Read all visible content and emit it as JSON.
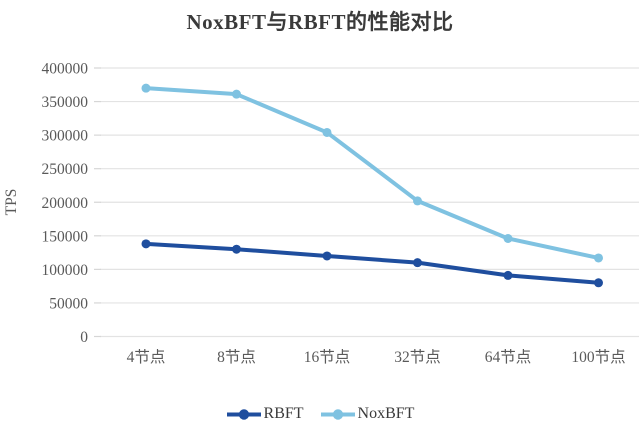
{
  "colors": {
    "background": "#FFFFFF",
    "gridline": "#E3E3E3",
    "tick": "#D6D6D6",
    "axis_text": "#595959",
    "title_text": "#3A3A3A",
    "rbft_blue": "#1F4E9E",
    "noxbft_blue": "#7FC2E1"
  },
  "chart_data": {
    "type": "line",
    "title": "NoxBFT与RBFT的性能对比",
    "xlabel": "",
    "ylabel": "TPS",
    "categories": [
      "4节点",
      "8节点",
      "16节点",
      "32节点",
      "64节点",
      "100节点"
    ],
    "series": [
      {
        "name": "RBFT",
        "color": "#1F4E9E",
        "values": [
          138000,
          130000,
          120000,
          110000,
          91000,
          80000
        ]
      },
      {
        "name": "NoxBFT",
        "color": "#7FC2E1",
        "values": [
          370000,
          361000,
          304000,
          202000,
          146000,
          117000
        ]
      }
    ],
    "ylim": [
      0,
      400000
    ],
    "yticks": [
      0,
      50000,
      100000,
      150000,
      200000,
      250000,
      300000,
      350000,
      400000
    ],
    "ytick_labels": [
      "0",
      "50000",
      "100000",
      "150000",
      "200000",
      "250000",
      "300000",
      "350000",
      "400000"
    ],
    "grid": true,
    "legend_position": "bottom",
    "marker": "circle"
  }
}
